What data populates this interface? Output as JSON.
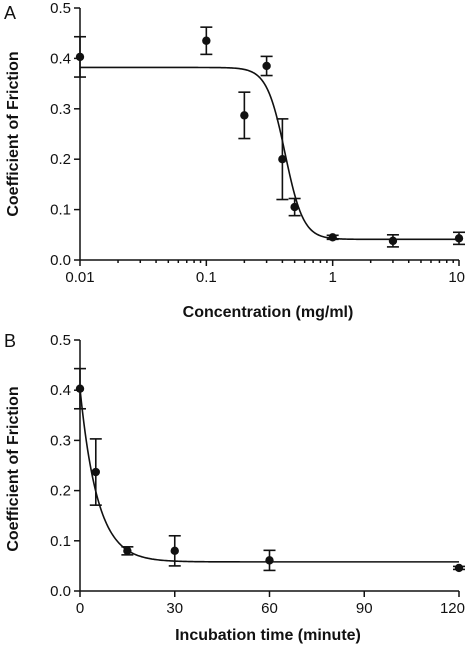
{
  "chart_data": [
    {
      "panel": "A",
      "type": "scatter",
      "xlabel": "Concentration (mg/ml)",
      "ylabel": "Coefficient of Friction",
      "xscale": "log",
      "xlim": [
        0.01,
        10
      ],
      "ylim": [
        0,
        0.5
      ],
      "xticks": [
        "0.01",
        "0.1",
        "1",
        "10"
      ],
      "yticks": [
        "0.0",
        "0.1",
        "0.2",
        "0.3",
        "0.4",
        "0.5"
      ],
      "points": [
        {
          "x": 0.01,
          "y": 0.403,
          "err": 0.04
        },
        {
          "x": 0.1,
          "y": 0.435,
          "err": 0.027
        },
        {
          "x": 0.2,
          "y": 0.287,
          "err": 0.046
        },
        {
          "x": 0.3,
          "y": 0.385,
          "err": 0.019
        },
        {
          "x": 0.4,
          "y": 0.2,
          "err": 0.08
        },
        {
          "x": 0.5,
          "y": 0.105,
          "err": 0.017
        },
        {
          "x": 1,
          "y": 0.045,
          "err": 0.004
        },
        {
          "x": 3,
          "y": 0.038,
          "err": 0.012
        },
        {
          "x": 10,
          "y": 0.043,
          "err": 0.012
        }
      ],
      "fit": {
        "model": "sigmoid",
        "top": 0.382,
        "bottom": 0.041,
        "ec50": 0.42,
        "hill": 6
      }
    },
    {
      "panel": "B",
      "type": "scatter",
      "xlabel": "Incubation time (minute)",
      "ylabel": "Coefficient of Friction",
      "xlim": [
        0,
        120
      ],
      "ylim": [
        0,
        0.5
      ],
      "xticks": [
        "0",
        "30",
        "60",
        "90",
        "120"
      ],
      "yticks": [
        "0.0",
        "0.1",
        "0.2",
        "0.3",
        "0.4",
        "0.5"
      ],
      "points": [
        {
          "x": 0,
          "y": 0.403,
          "err": 0.04
        },
        {
          "x": 5,
          "y": 0.237,
          "err": 0.066
        },
        {
          "x": 15,
          "y": 0.08,
          "err": 0.008
        },
        {
          "x": 30,
          "y": 0.08,
          "err": 0.03
        },
        {
          "x": 60,
          "y": 0.061,
          "err": 0.02
        },
        {
          "x": 120,
          "y": 0.046,
          "err": 0.003
        }
      ],
      "fit": {
        "model": "exponential_decay",
        "y0": 0.403,
        "plateau": 0.058,
        "k": 0.18
      }
    }
  ]
}
